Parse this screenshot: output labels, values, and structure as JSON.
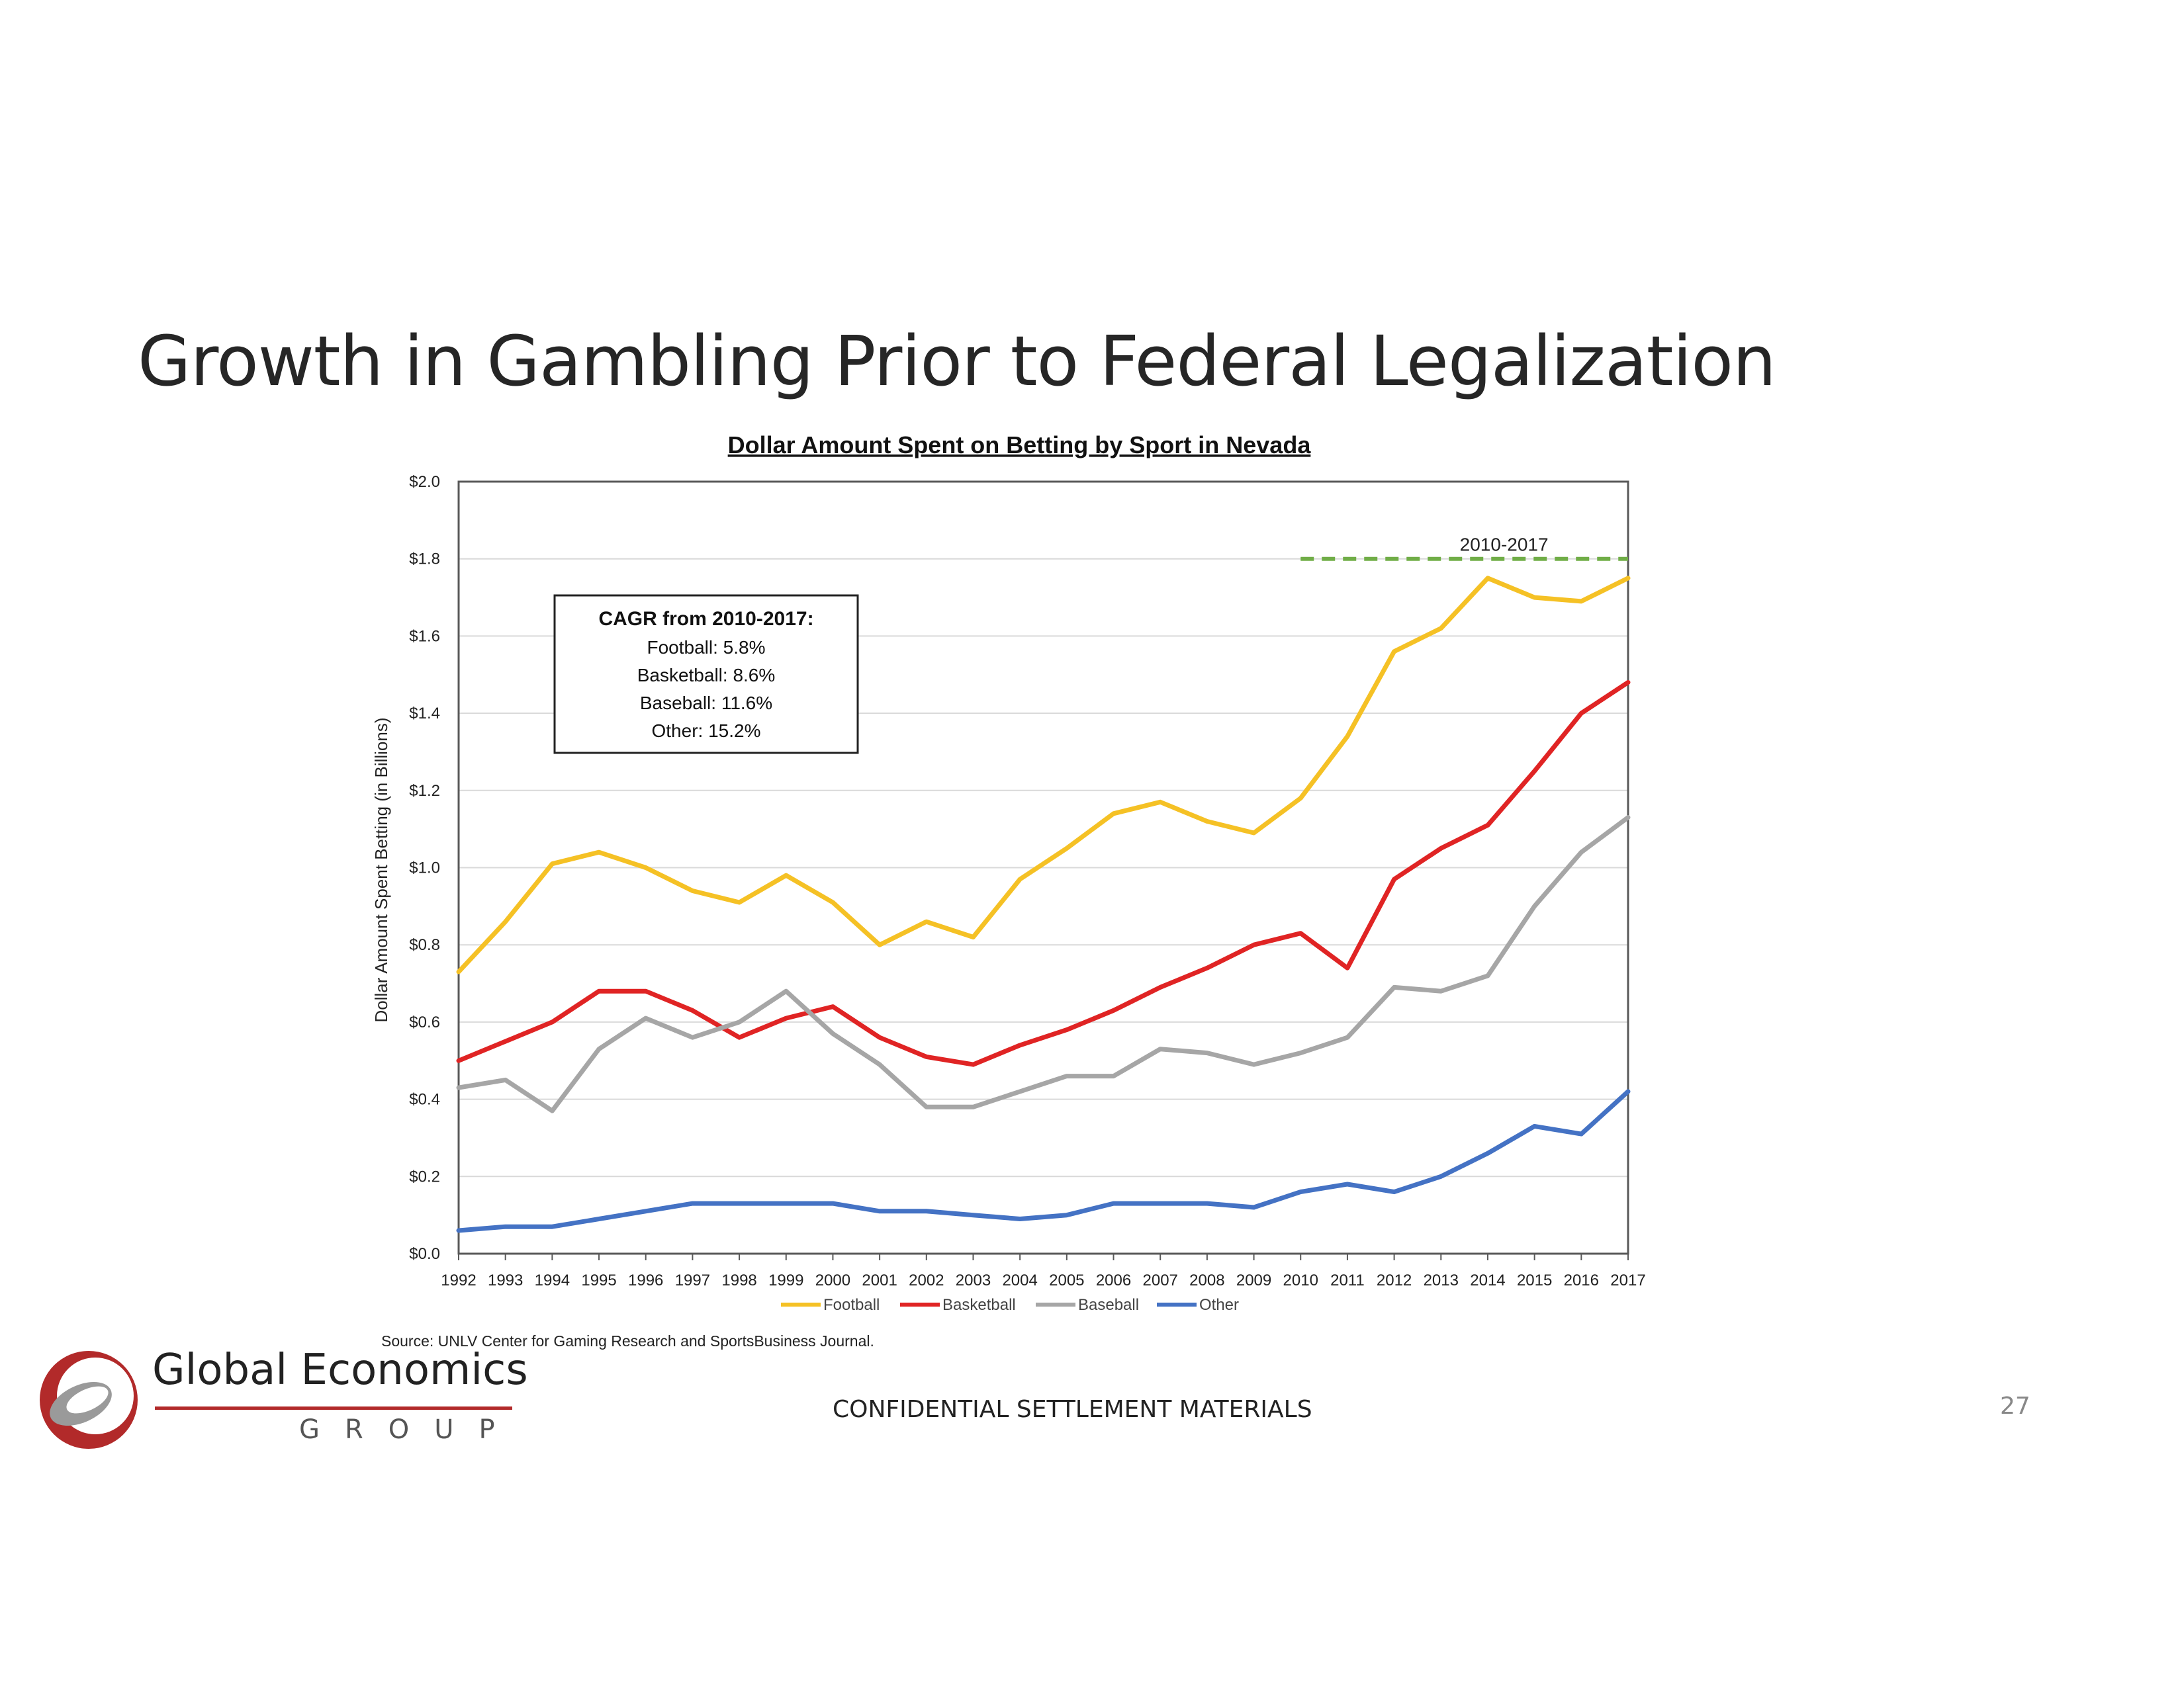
{
  "slide": {
    "title": "Growth in Gambling Prior to Federal Legalization",
    "footer": "CONFIDENTIAL SETTLEMENT MATERIALS",
    "page_number": "27",
    "logo": {
      "name": "Global Economics",
      "sub": "GROUP"
    }
  },
  "colors": {
    "football": "#f5c125",
    "basketball": "#e02424",
    "baseball": "#a6a6a6",
    "other": "#4472c4",
    "period_line": "#70ad47",
    "logo_red": "#b22a2a"
  },
  "chart_data": {
    "type": "line",
    "title": "Dollar Amount Spent on Betting by Sport in Nevada",
    "ylabel": "Dollar Amount Spent Betting (in Billions)",
    "xlabel": "",
    "ylim": [
      0,
      2.0
    ],
    "y_ticks": [
      0,
      0.2,
      0.4,
      0.6,
      0.8,
      1.0,
      1.2,
      1.4,
      1.6,
      1.8,
      2.0
    ],
    "y_tick_labels": [
      "$0.0",
      "$0.2",
      "$0.4",
      "$0.6",
      "$0.8",
      "$1.0",
      "$1.2",
      "$1.4",
      "$1.6",
      "$1.8",
      "$2.0"
    ],
    "grid": true,
    "legend_position": "bottom",
    "x": [
      1992,
      1993,
      1994,
      1995,
      1996,
      1997,
      1998,
      1999,
      2000,
      2001,
      2002,
      2003,
      2004,
      2005,
      2006,
      2007,
      2008,
      2009,
      2010,
      2011,
      2012,
      2013,
      2014,
      2015,
      2016,
      2017
    ],
    "series": [
      {
        "name": "Football",
        "color_key": "football",
        "values": [
          0.73,
          0.86,
          1.01,
          1.04,
          1.0,
          0.94,
          0.91,
          0.98,
          0.91,
          0.8,
          0.86,
          0.82,
          0.97,
          1.05,
          1.14,
          1.17,
          1.12,
          1.09,
          1.18,
          1.34,
          1.56,
          1.62,
          1.75,
          1.7,
          1.69,
          1.75
        ]
      },
      {
        "name": "Basketball",
        "color_key": "basketball",
        "values": [
          0.5,
          0.55,
          0.6,
          0.68,
          0.68,
          0.63,
          0.56,
          0.61,
          0.64,
          0.56,
          0.51,
          0.49,
          0.54,
          0.58,
          0.63,
          0.69,
          0.74,
          0.8,
          0.83,
          0.74,
          0.97,
          1.05,
          1.11,
          1.25,
          1.4,
          1.48
        ]
      },
      {
        "name": "Baseball",
        "color_key": "baseball",
        "values": [
          0.43,
          0.45,
          0.37,
          0.53,
          0.61,
          0.56,
          0.6,
          0.68,
          0.57,
          0.49,
          0.38,
          0.38,
          0.42,
          0.46,
          0.46,
          0.53,
          0.52,
          0.49,
          0.52,
          0.56,
          0.69,
          0.68,
          0.72,
          0.9,
          1.04,
          1.13
        ]
      },
      {
        "name": "Other",
        "color_key": "other",
        "values": [
          0.06,
          0.07,
          0.07,
          0.09,
          0.11,
          0.13,
          0.13,
          0.13,
          0.13,
          0.11,
          0.11,
          0.1,
          0.09,
          0.1,
          0.13,
          0.13,
          0.13,
          0.12,
          0.16,
          0.18,
          0.16,
          0.2,
          0.26,
          0.33,
          0.31,
          0.42
        ]
      }
    ],
    "period_annotation": {
      "label": "2010-2017",
      "x_start": 2010,
      "x_end": 2017,
      "y": 1.8
    },
    "cagr_box": {
      "heading": "CAGR from 2010-2017:",
      "lines": [
        "Football: 5.8%",
        "Basketball: 8.6%",
        "Baseball: 11.6%",
        "Other: 15.2%"
      ]
    },
    "source": "Source: UNLV Center for Gaming Research and SportsBusiness Journal."
  }
}
